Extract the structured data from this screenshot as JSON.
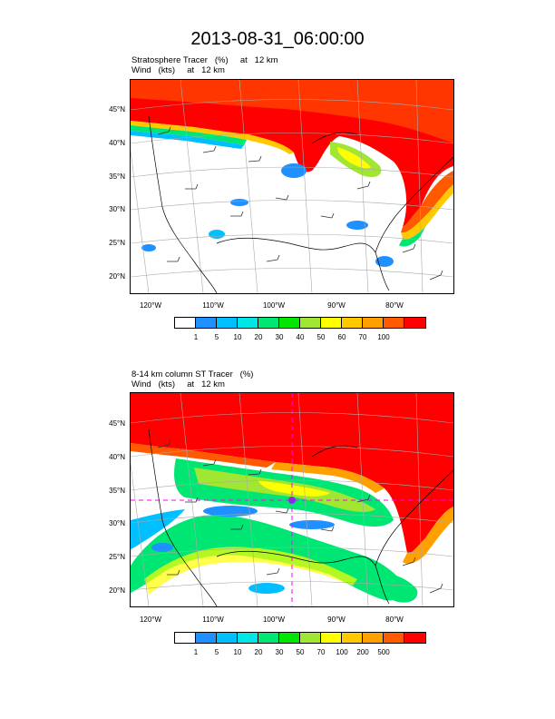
{
  "title": "2013-08-31_06:00:00",
  "panel1": {
    "field_label": "Stratosphere Tracer   (%)     at   12 km",
    "wind_label": "Wind   (kts)     at   12 km",
    "lat_labels": [
      "45°N",
      "40°N",
      "35°N",
      "30°N",
      "25°N",
      "20°N"
    ],
    "lon_labels": [
      "120°W",
      "110°W",
      "100°W",
      "90°W",
      "80°W"
    ],
    "colorbar_labels": [
      "1",
      "5",
      "10",
      "20",
      "30",
      "40",
      "50",
      "60",
      "70",
      "100"
    ],
    "colors": [
      "#ffffff",
      "#1e90ff",
      "#00bfff",
      "#00e5e5",
      "#00e673",
      "#00e600",
      "#a0e632",
      "#ffff00",
      "#ffc800",
      "#ffa000",
      "#ff5a00",
      "#ff0000"
    ]
  },
  "panel2": {
    "field_label": "8-14 km column ST Tracer   (%)",
    "wind_label": "Wind   (kts)     at   12 km",
    "lat_labels": [
      "45°N",
      "40°N",
      "35°N",
      "30°N",
      "25°N",
      "20°N"
    ],
    "lon_labels": [
      "120°W",
      "110°W",
      "100°W",
      "90°W",
      "80°W"
    ],
    "colorbar_labels": [
      "1",
      "5",
      "10",
      "20",
      "30",
      "50",
      "70",
      "100",
      "200",
      "500"
    ],
    "colors": [
      "#ffffff",
      "#1e90ff",
      "#00bfff",
      "#00e5e5",
      "#00e673",
      "#00e600",
      "#a0e632",
      "#ffff00",
      "#ffc800",
      "#ffa000",
      "#ff5a00",
      "#ff0000"
    ]
  }
}
